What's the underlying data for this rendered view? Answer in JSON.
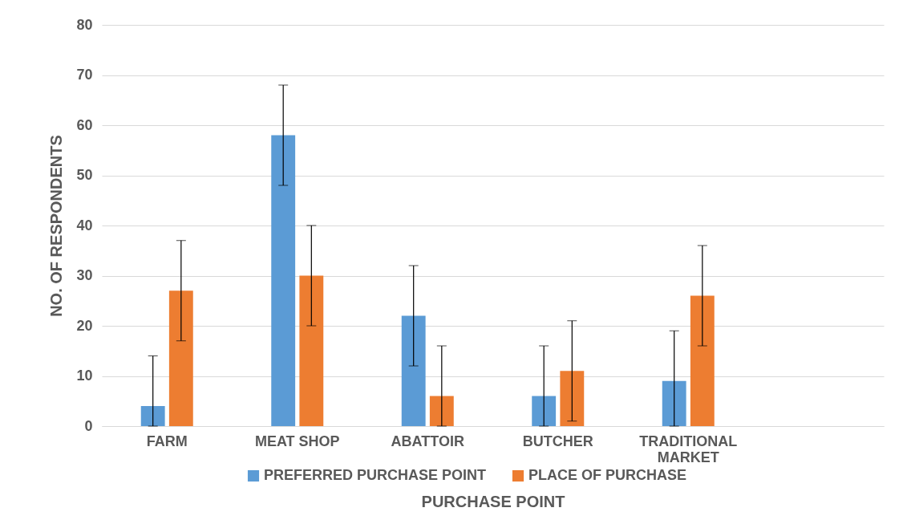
{
  "chart_data": {
    "type": "bar",
    "xlabel": "PURCHASE POINT",
    "ylabel": "NO. OF RESPONDENTS",
    "categories": [
      "FARM",
      "MEAT SHOP",
      "ABATTOIR",
      "BUTCHER",
      "TRADITIONAL MARKET",
      null
    ],
    "series": [
      {
        "name": "PREFERRED PURCHASE POINT",
        "color": "#5b9bd5",
        "values": [
          4,
          58,
          22,
          6,
          9,
          null
        ],
        "errors": [
          [
            0,
            14
          ],
          [
            48,
            68
          ],
          [
            12,
            32
          ],
          [
            0,
            16
          ],
          [
            0,
            19
          ],
          null
        ]
      },
      {
        "name": "PLACE OF PURCHASE",
        "color": "#ed7d31",
        "values": [
          27,
          30,
          6,
          11,
          26,
          null
        ],
        "errors": [
          [
            17,
            37
          ],
          [
            20,
            40
          ],
          [
            0,
            16
          ],
          [
            1,
            21
          ],
          [
            16,
            36
          ],
          null
        ]
      }
    ],
    "ylim": [
      0,
      80
    ],
    "yticks": [
      0,
      10,
      20,
      30,
      40,
      50,
      60,
      70,
      80
    ],
    "grid": "y",
    "legend": "bottom"
  }
}
